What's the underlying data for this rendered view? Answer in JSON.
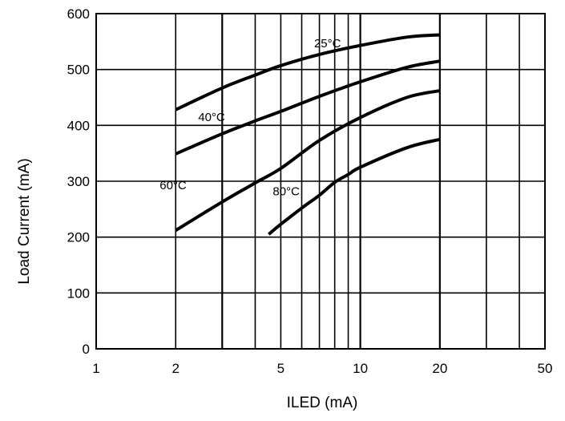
{
  "chart_data": {
    "type": "line",
    "title": "",
    "xlabel": "ILED (mA)",
    "ylabel": "Load Current (mA)",
    "x_scale": "log",
    "xlim": [
      1,
      50
    ],
    "ylim": [
      0,
      600
    ],
    "grid": true,
    "x_ticks": [
      {
        "value": 1,
        "label": "1"
      },
      {
        "value": 2,
        "label": "2"
      },
      {
        "value": 5,
        "label": "5"
      },
      {
        "value": 10,
        "label": "10"
      },
      {
        "value": 20,
        "label": "20"
      },
      {
        "value": 50,
        "label": "50"
      }
    ],
    "y_ticks": [
      {
        "value": 0,
        "label": "0"
      },
      {
        "value": 100,
        "label": "100"
      },
      {
        "value": 200,
        "label": "200"
      },
      {
        "value": 300,
        "label": "300"
      },
      {
        "value": 400,
        "label": "400"
      },
      {
        "value": 500,
        "label": "500"
      },
      {
        "value": 600,
        "label": "600"
      }
    ],
    "series": [
      {
        "name": "25°C",
        "x": [
          2,
          3,
          4,
          5,
          7,
          10,
          15,
          20
        ],
        "y": [
          428,
          467,
          490,
          507,
          527,
          543,
          558,
          562
        ]
      },
      {
        "name": "40°C",
        "x": [
          2,
          3,
          4,
          5,
          7,
          10,
          15,
          20
        ],
        "y": [
          349,
          385,
          408,
          425,
          452,
          478,
          504,
          515
        ]
      },
      {
        "name": "60°C",
        "x": [
          2,
          3,
          4,
          5,
          7,
          10,
          15,
          20
        ],
        "y": [
          212,
          263,
          297,
          323,
          373,
          414,
          450,
          462
        ]
      },
      {
        "name": "80°C",
        "x": [
          4.5,
          5,
          6,
          7,
          8,
          9,
          10,
          15,
          20
        ],
        "y": [
          205,
          223,
          252,
          275,
          298,
          312,
          325,
          360,
          375
        ]
      }
    ]
  }
}
